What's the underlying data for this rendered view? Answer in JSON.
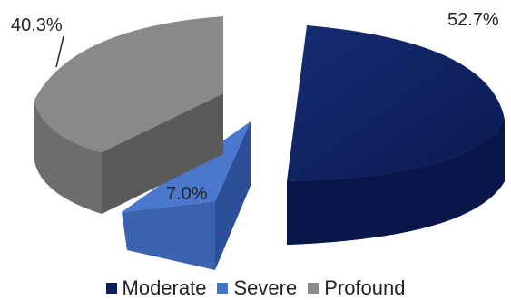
{
  "chart_data": {
    "type": "pie",
    "three_d": true,
    "exploded": true,
    "categories": [
      "Moderate",
      "Severe",
      "Profound"
    ],
    "values": [
      52.7,
      7.0,
      40.3
    ],
    "labels": [
      "52.7%",
      "7.0%",
      "40.3%"
    ],
    "colors": [
      "#0d1f5c",
      "#4472c4",
      "#8c8c8c"
    ],
    "legend_position": "bottom"
  }
}
